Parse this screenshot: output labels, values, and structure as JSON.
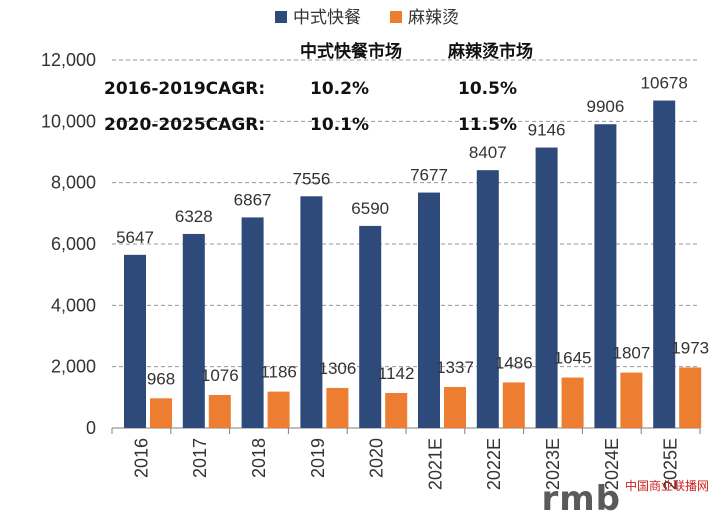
{
  "chart_data": {
    "type": "bar",
    "categories": [
      "2016",
      "2017",
      "2018",
      "2019",
      "2020",
      "2021E",
      "2022E",
      "2023E",
      "2024E",
      "2025E"
    ],
    "series": [
      {
        "name": "中式快餐",
        "color": "#2e4a7a",
        "values": [
          5647,
          6328,
          6867,
          7556,
          6590,
          7677,
          8407,
          9146,
          9906,
          10678
        ]
      },
      {
        "name": "麻辣烫",
        "color": "#ed7d31",
        "values": [
          968,
          1076,
          1186,
          1306,
          1142,
          1337,
          1486,
          1645,
          1807,
          1973
        ]
      }
    ],
    "data_labels": {
      "中式快餐": [
        "5647",
        "6328",
        "6867",
        "7556",
        "6590",
        "7677",
        "8407",
        "9146",
        "9906",
        "10678"
      ],
      "麻辣烫": [
        "968",
        "1076",
        "1186",
        "1306",
        "1142",
        "1337",
        "1486",
        "1645",
        "1807",
        "1973"
      ]
    },
    "ylim": [
      0,
      12000
    ],
    "yticks": [
      0,
      2000,
      4000,
      6000,
      8000,
      10000,
      12000
    ],
    "ytick_labels": [
      "0",
      "2,000",
      "4,000",
      "6,000",
      "8,000",
      "10,000",
      "12,000"
    ],
    "grid": "horizontal-dashed",
    "legend": "top-center",
    "xlabel": "",
    "ylabel": "",
    "title": "",
    "annotation": {
      "header_col1": "中式快餐市场",
      "header_col2": "麻辣烫市场",
      "rows": [
        {
          "label": "2016-2019CAGR:",
          "col1": "10.2%",
          "col2": "10.5%"
        },
        {
          "label": "2020-2025CAGR:",
          "col1": "10.1%",
          "col2": "11.5%"
        }
      ]
    }
  },
  "watermark": {
    "brand": "rmb",
    "site": "中国商业联播网"
  }
}
